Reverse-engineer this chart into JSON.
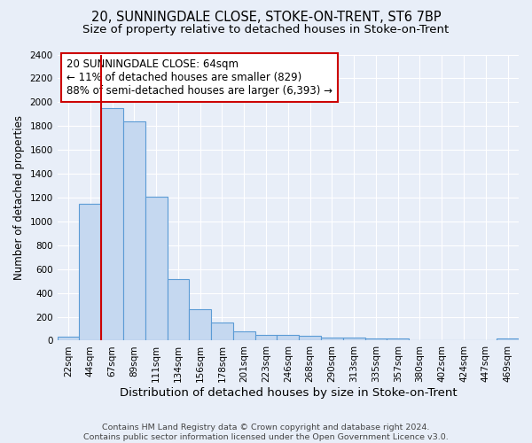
{
  "title": "20, SUNNINGDALE CLOSE, STOKE-ON-TRENT, ST6 7BP",
  "subtitle": "Size of property relative to detached houses in Stoke-on-Trent",
  "xlabel": "Distribution of detached houses by size in Stoke-on-Trent",
  "ylabel": "Number of detached properties",
  "categories": [
    "22sqm",
    "44sqm",
    "67sqm",
    "89sqm",
    "111sqm",
    "134sqm",
    "156sqm",
    "178sqm",
    "201sqm",
    "223sqm",
    "246sqm",
    "268sqm",
    "290sqm",
    "313sqm",
    "335sqm",
    "357sqm",
    "380sqm",
    "402sqm",
    "424sqm",
    "447sqm",
    "469sqm"
  ],
  "values": [
    30,
    1150,
    1950,
    1840,
    1210,
    515,
    265,
    155,
    80,
    50,
    45,
    40,
    22,
    25,
    15,
    20,
    0,
    0,
    0,
    0,
    20
  ],
  "bar_color": "#c5d8f0",
  "bar_edge_color": "#5b9bd5",
  "vline_color": "#cc0000",
  "vline_index": 1.5,
  "annotation_text": "20 SUNNINGDALE CLOSE: 64sqm\n← 11% of detached houses are smaller (829)\n88% of semi-detached houses are larger (6,393) →",
  "ylim": [
    0,
    2400
  ],
  "yticks": [
    0,
    200,
    400,
    600,
    800,
    1000,
    1200,
    1400,
    1600,
    1800,
    2000,
    2200,
    2400
  ],
  "footer_line1": "Contains HM Land Registry data © Crown copyright and database right 2024.",
  "footer_line2": "Contains public sector information licensed under the Open Government Licence v3.0.",
  "bg_color": "#e8eef8",
  "grid_color": "#ffffff",
  "title_fontsize": 10.5,
  "subtitle_fontsize": 9.5,
  "xlabel_fontsize": 9.5,
  "ylabel_fontsize": 8.5,
  "tick_fontsize": 7.5,
  "footer_fontsize": 6.8,
  "annotation_fontsize": 8.5
}
